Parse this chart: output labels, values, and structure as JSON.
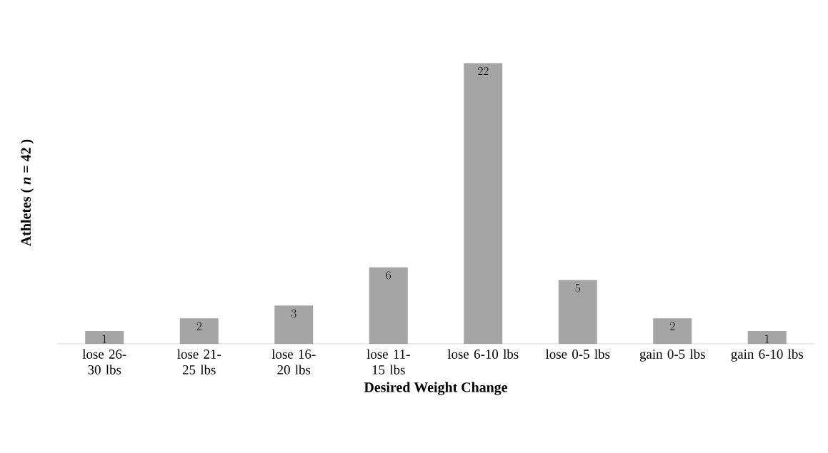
{
  "chart_data": {
    "type": "bar",
    "xlabel": "Desired Weight Change",
    "ylabel": "Athletes ( *n* = 42 )",
    "categories": [
      "lose 26-30 lbs",
      "lose 21-25 lbs",
      "lose 16-20 lbs",
      "lose 11-15 lbs",
      "lose 6-10 lbs",
      "lose 0-5 lbs",
      "gain 0-5 lbs",
      "gain 6-10 lbs"
    ],
    "values": [
      1,
      2,
      3,
      6,
      22,
      5,
      2,
      1
    ],
    "color": "#a5a5a5",
    "data_labels": true
  }
}
